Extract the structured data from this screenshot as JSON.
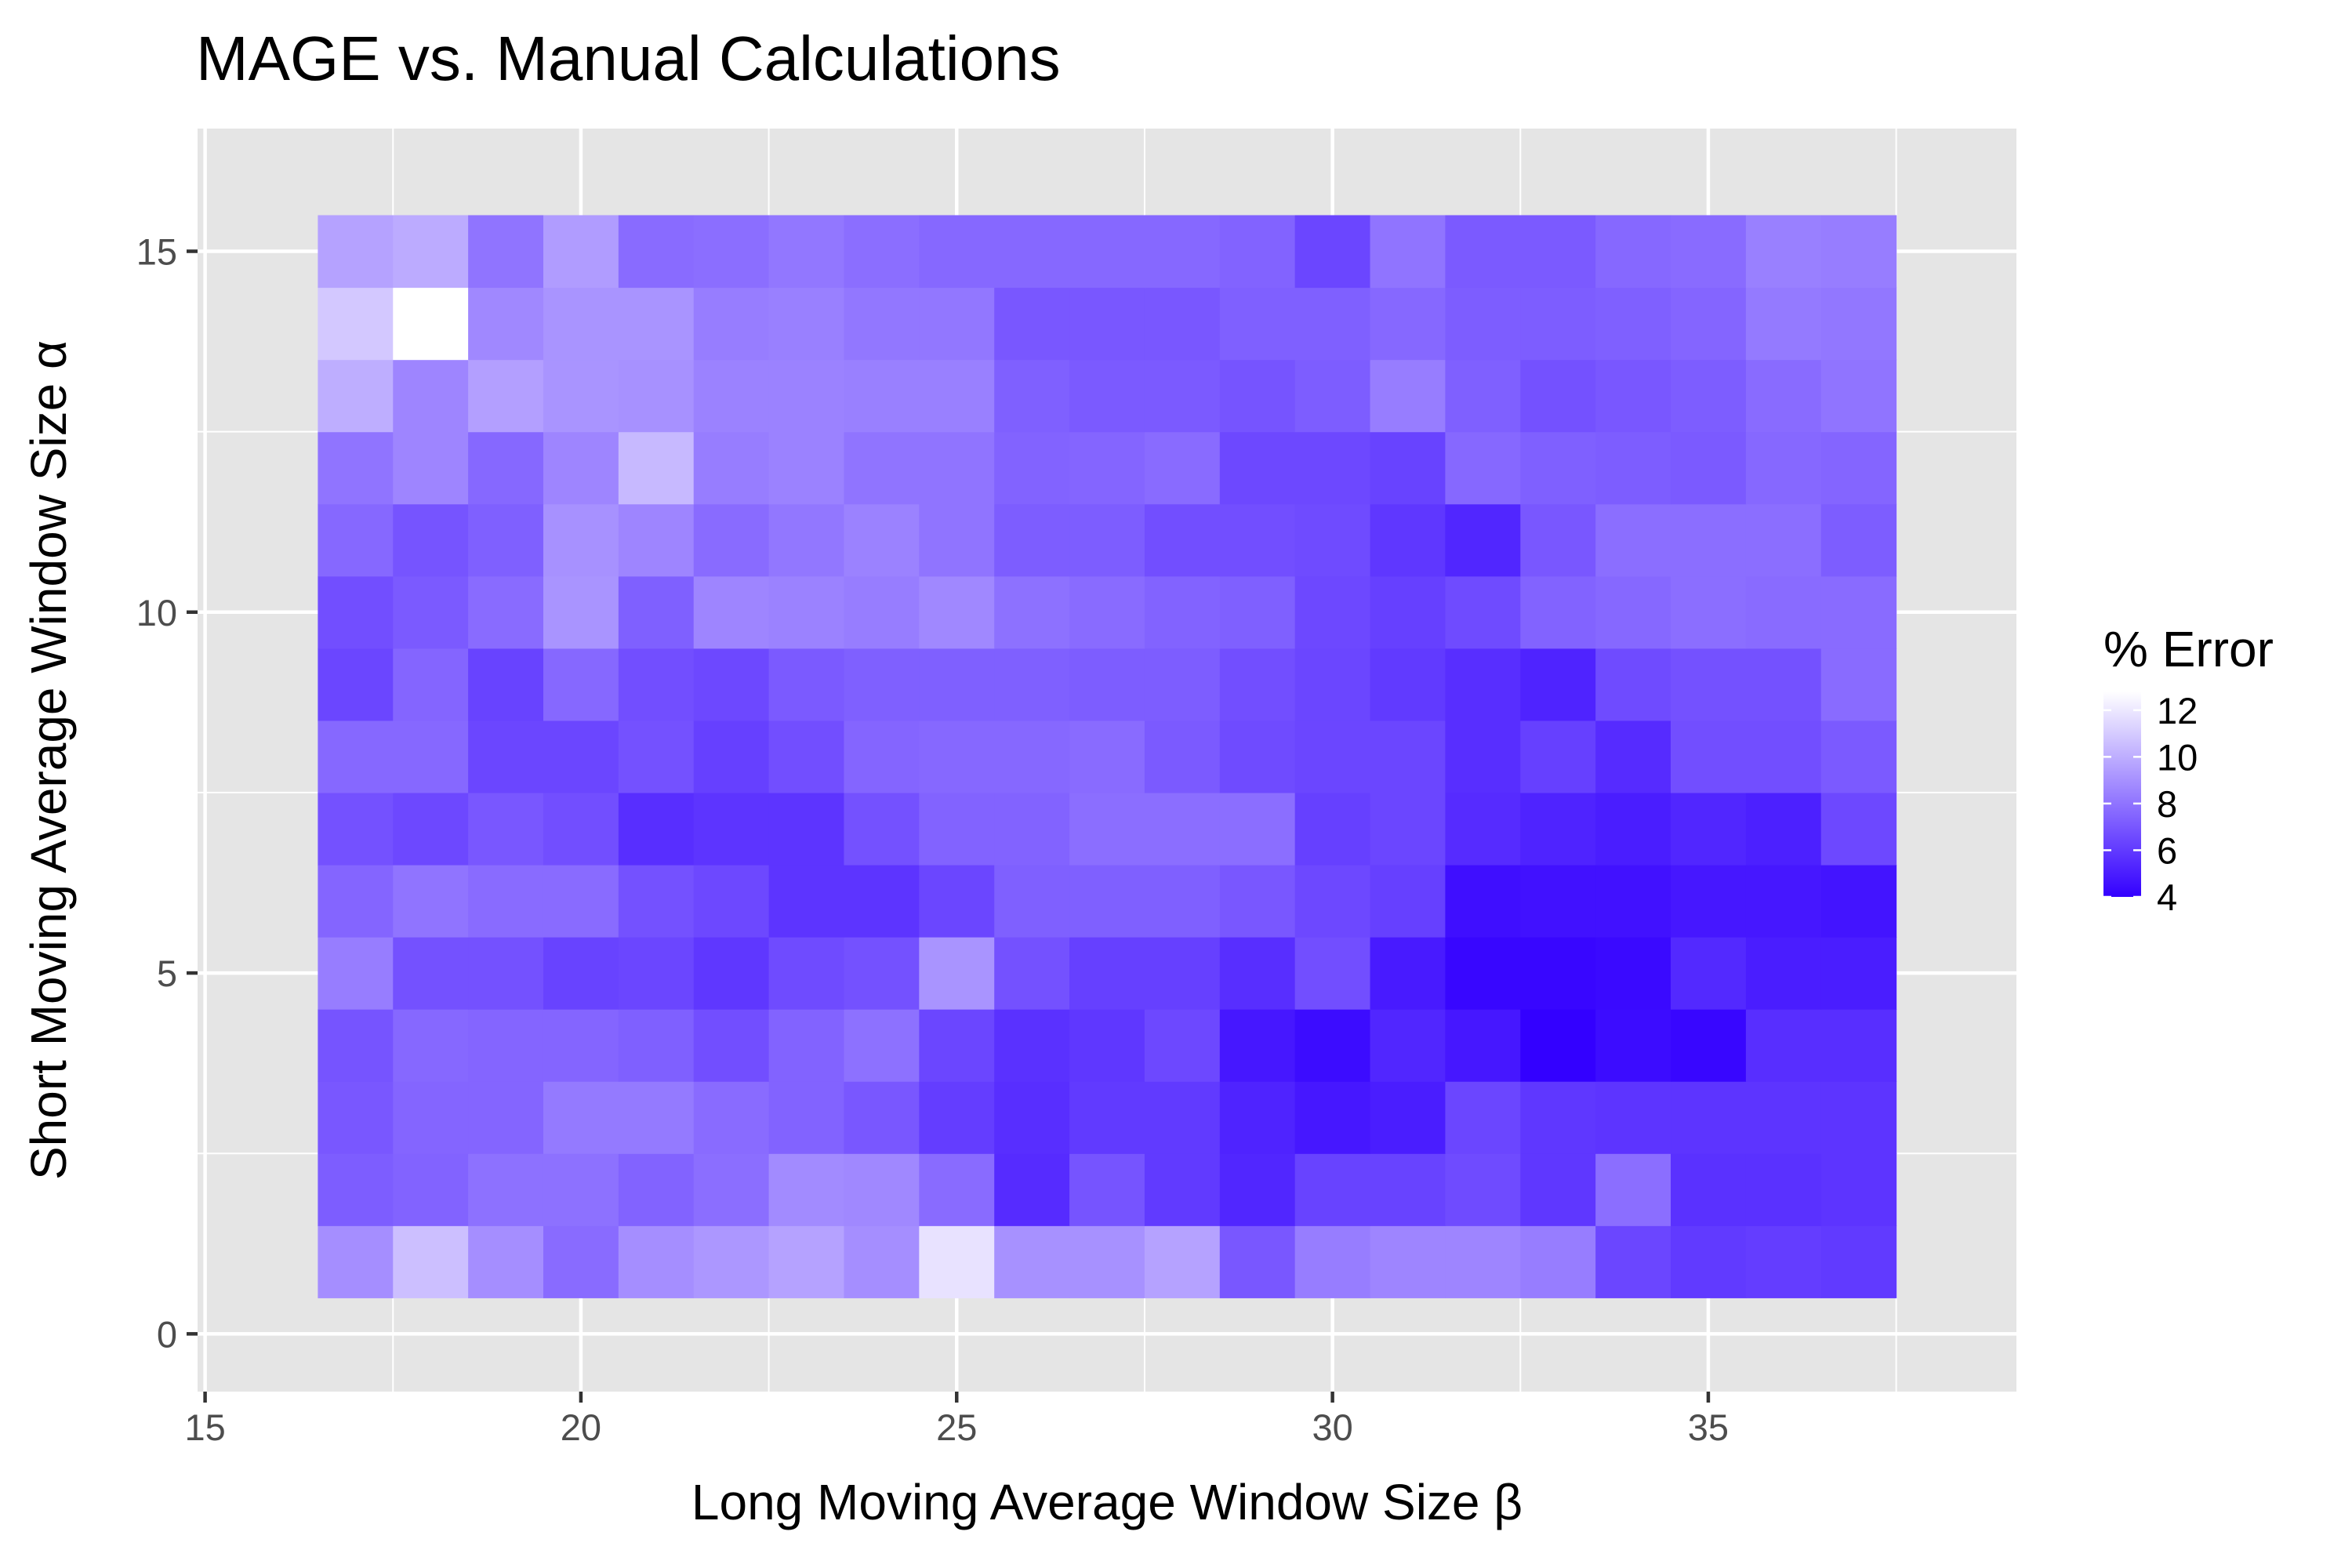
{
  "chart_data": {
    "type": "heatmap",
    "title": "MAGE vs. Manual Calculations",
    "xlabel": "Long Moving Average Window Size β",
    "ylabel": "Short Moving Average Window Size α",
    "xlim": [
      14.9,
      39.1
    ],
    "ylim": [
      -0.8,
      16.7
    ],
    "x_ticks": [
      15,
      20,
      25,
      30,
      35
    ],
    "y_ticks": [
      0,
      5,
      10,
      15
    ],
    "x": [
      17,
      18,
      19,
      20,
      21,
      22,
      23,
      24,
      25,
      26,
      27,
      28,
      29,
      30,
      31,
      32,
      33,
      34,
      35,
      36,
      37
    ],
    "y": [
      1,
      2,
      3,
      4,
      5,
      6,
      7,
      8,
      9,
      10,
      11,
      12,
      13,
      14,
      15
    ],
    "z": [
      [
        8.9,
        10.6,
        8.9,
        7.7,
        8.9,
        9.2,
        9.6,
        8.9,
        11.8,
        9.0,
        9.0,
        9.6,
        7.0,
        8.3,
        8.6,
        8.6,
        8.3,
        6.4,
        6.0,
        6.1,
        6.0
      ],
      [
        7.2,
        7.4,
        7.9,
        7.9,
        7.4,
        7.8,
        8.8,
        8.7,
        7.7,
        5.5,
        6.9,
        6.0,
        5.3,
        6.3,
        6.3,
        6.6,
        5.9,
        7.8,
        5.7,
        5.7,
        5.8
      ],
      [
        7.0,
        7.5,
        7.5,
        8.2,
        8.2,
        7.7,
        7.4,
        7.0,
        6.1,
        5.6,
        6.0,
        6.0,
        5.2,
        4.8,
        5.0,
        6.4,
        5.9,
        5.8,
        5.8,
        5.8,
        5.8
      ],
      [
        6.9,
        7.6,
        7.5,
        7.5,
        7.3,
        6.7,
        7.4,
        7.9,
        6.4,
        5.7,
        5.9,
        6.5,
        4.8,
        4.4,
        5.3,
        4.8,
        4.0,
        4.4,
        4.2,
        5.6,
        5.6
      ],
      [
        8.3,
        6.8,
        6.8,
        6.3,
        6.4,
        5.9,
        6.6,
        6.8,
        9.1,
        6.8,
        6.2,
        6.2,
        5.6,
        6.7,
        4.9,
        4.2,
        4.2,
        4.3,
        5.4,
        5.0,
        5.0
      ],
      [
        7.5,
        8.0,
        7.7,
        7.7,
        6.8,
        6.5,
        5.8,
        5.8,
        6.4,
        7.3,
        7.3,
        7.3,
        7.0,
        6.5,
        6.2,
        4.5,
        4.6,
        4.6,
        4.8,
        4.8,
        4.7
      ],
      [
        6.8,
        6.5,
        7.0,
        6.7,
        5.6,
        5.8,
        5.8,
        6.8,
        7.4,
        7.4,
        7.8,
        7.8,
        7.8,
        6.2,
        6.4,
        5.5,
        5.2,
        5.0,
        5.3,
        5.1,
        6.5
      ],
      [
        7.6,
        7.6,
        6.4,
        6.4,
        6.8,
        6.2,
        6.7,
        7.5,
        7.6,
        7.6,
        7.7,
        7.1,
        6.6,
        6.4,
        6.4,
        5.6,
        6.2,
        5.5,
        6.7,
        6.7,
        7.1
      ],
      [
        6.4,
        7.5,
        6.3,
        7.6,
        6.7,
        6.5,
        7.1,
        7.3,
        7.3,
        7.3,
        7.2,
        7.2,
        6.7,
        6.4,
        6.0,
        5.6,
        5.2,
        6.6,
        6.8,
        6.8,
        7.7
      ],
      [
        6.7,
        7.1,
        7.7,
        9.1,
        7.3,
        8.6,
        8.5,
        8.3,
        8.7,
        7.9,
        7.7,
        7.4,
        7.3,
        6.5,
        6.2,
        6.6,
        7.4,
        7.6,
        7.8,
        7.7,
        7.7
      ],
      [
        7.6,
        6.9,
        7.3,
        9.0,
        8.6,
        7.7,
        8.1,
        8.5,
        8.0,
        7.2,
        7.2,
        6.7,
        6.7,
        6.6,
        5.9,
        5.3,
        7.0,
        7.8,
        7.8,
        7.8,
        7.2
      ],
      [
        8.0,
        8.6,
        7.6,
        8.6,
        10.4,
        8.3,
        8.5,
        8.0,
        8.0,
        7.4,
        7.5,
        7.7,
        6.5,
        6.5,
        6.3,
        7.6,
        7.3,
        7.2,
        7.1,
        7.6,
        7.5
      ],
      [
        10.0,
        8.6,
        9.5,
        9.1,
        9.0,
        8.5,
        8.5,
        8.4,
        8.4,
        7.3,
        7.1,
        7.1,
        6.9,
        7.2,
        8.3,
        7.3,
        6.8,
        7.0,
        7.2,
        7.7,
        8.0
      ],
      [
        10.9,
        12.8,
        8.7,
        9.1,
        9.1,
        8.3,
        8.4,
        8.1,
        8.1,
        7.0,
        7.0,
        7.0,
        7.3,
        7.3,
        7.6,
        7.2,
        7.2,
        7.3,
        7.5,
        8.2,
        8.1
      ],
      [
        9.6,
        9.9,
        8.0,
        9.4,
        7.7,
        7.8,
        8.1,
        7.8,
        7.6,
        7.6,
        7.6,
        7.6,
        7.4,
        6.4,
        8.0,
        7.1,
        7.1,
        7.6,
        7.7,
        8.4,
        8.3
      ]
    ],
    "zlim": [
      4,
      12.8
    ],
    "colorscale": [
      "#3300ff",
      "#ffffff"
    ],
    "legend": {
      "title": "% Error",
      "ticks": [
        4,
        6,
        8,
        10,
        12
      ],
      "placement": "right"
    },
    "panel_background": "#e5e5e5",
    "grid_color": "#ffffff",
    "grid": true
  }
}
